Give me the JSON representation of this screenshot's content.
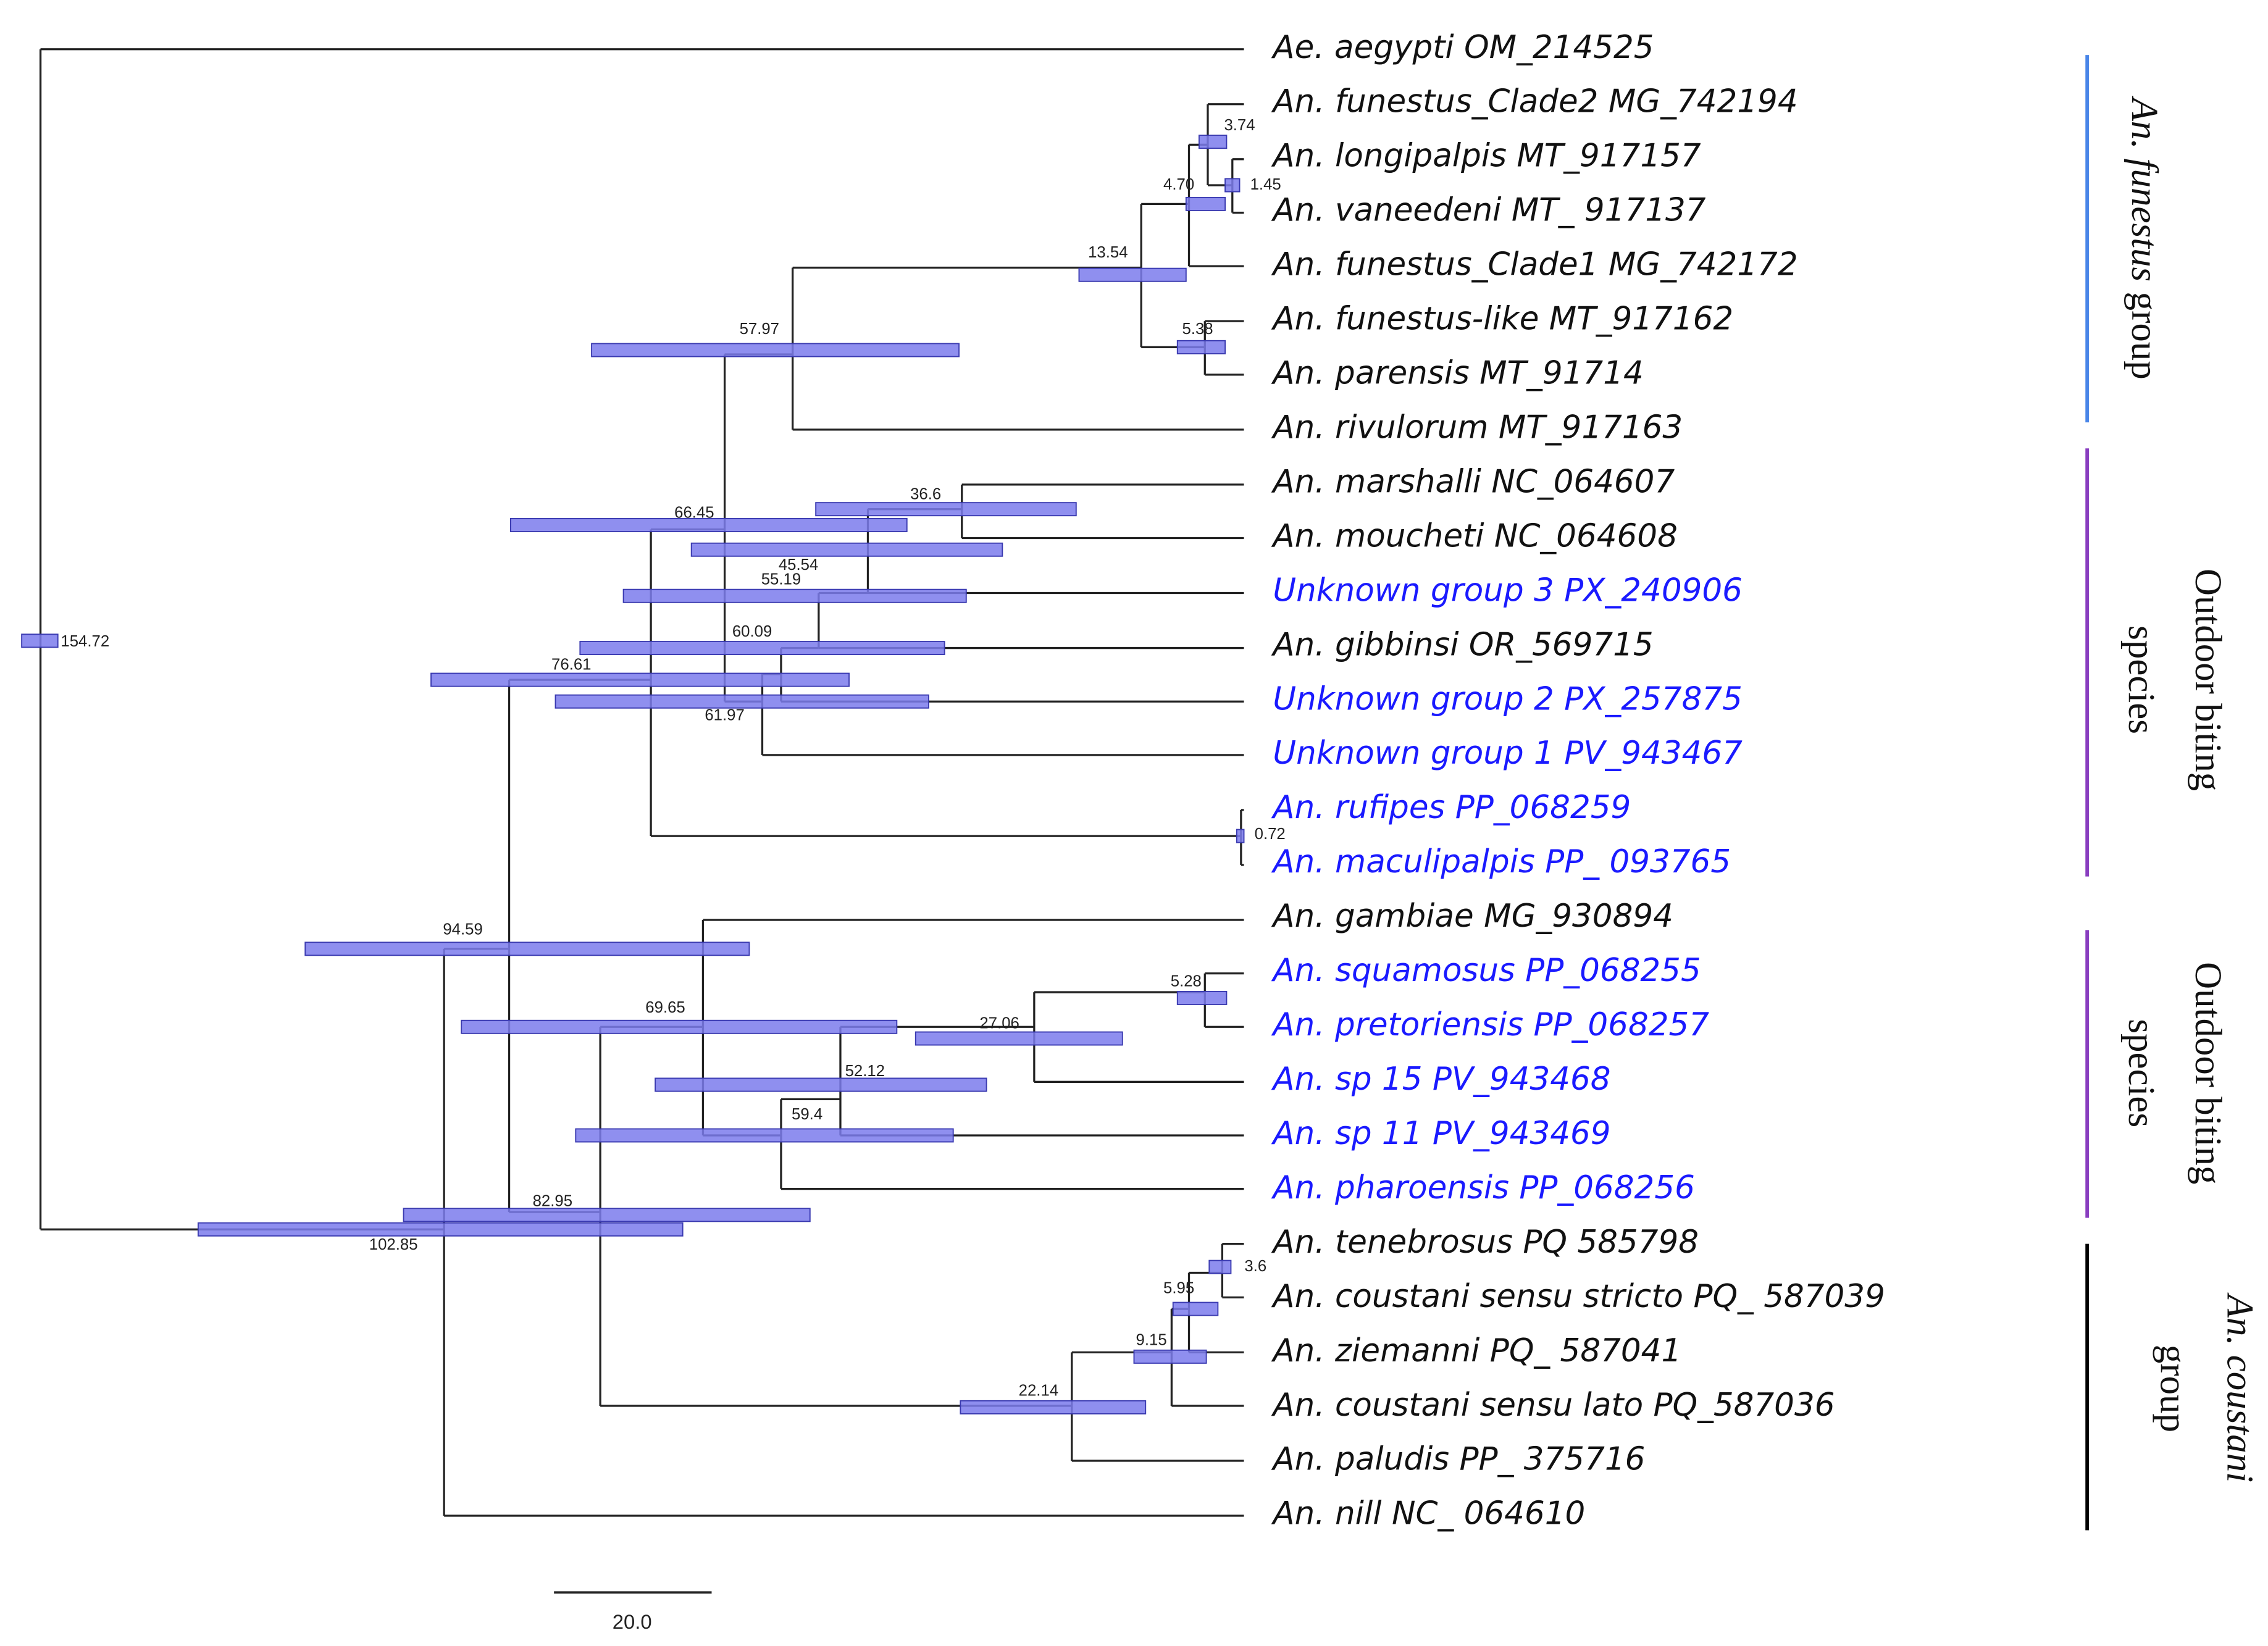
{
  "taxa": [
    {
      "label": "Ae. aegypti OM_214525",
      "color": "#111111"
    },
    {
      "label": "An. funestus_Clade2 MG_742194",
      "color": "#111111"
    },
    {
      "label": "An. longipalpis MT_917157",
      "color": "#111111"
    },
    {
      "label": "An. vaneedeni MT_ 917137",
      "color": "#111111"
    },
    {
      "label": "An. funestus_Clade1 MG_742172",
      "color": "#111111"
    },
    {
      "label": "An. funestus-like MT_917162",
      "color": "#111111"
    },
    {
      "label": "An. parensis MT_91714",
      "color": "#111111"
    },
    {
      "label": "An. rivulorum MT_917163",
      "color": "#111111"
    },
    {
      "label": "An. marshalli NC_064607",
      "color": "#111111"
    },
    {
      "label": "An. moucheti NC_064608",
      "color": "#111111"
    },
    {
      "label": "Unknown group 3 PX_240906",
      "color": "#1a1aff"
    },
    {
      "label": "An. gibbinsi OR_569715",
      "color": "#111111"
    },
    {
      "label": "Unknown group 2 PX_257875",
      "color": "#1a1aff"
    },
    {
      "label": "Unknown group 1 PV_943467",
      "color": "#1a1aff"
    },
    {
      "label": "An. rufipes PP_068259",
      "color": "#1a1aff"
    },
    {
      "label": "An. maculipalpis PP_ 093765",
      "color": "#1a1aff"
    },
    {
      "label": "An. gambiae MG_930894",
      "color": "#111111"
    },
    {
      "label": "An. squamosus PP_068255",
      "color": "#1a1aff"
    },
    {
      "label": "An. pretoriensis PP_068257",
      "color": "#1a1aff"
    },
    {
      "label": "An. sp 15 PV_943468",
      "color": "#1a1aff"
    },
    {
      "label": "An. sp 11 PV_943469",
      "color": "#1a1aff"
    },
    {
      "label": "An. pharoensis PP_068256",
      "color": "#1a1aff"
    },
    {
      "label": "An. tenebrosus PQ 585798",
      "color": "#111111"
    },
    {
      "label": "An. coustani sensu stricto PQ_ 587039",
      "color": "#111111"
    },
    {
      "label": "An. ziemanni PQ_ 587041",
      "color": "#111111"
    },
    {
      "label": "An. coustani sensu lato PQ_587036",
      "color": "#111111"
    },
    {
      "label": "An. paludis PP_ 375716",
      "color": "#111111"
    },
    {
      "label": "An. nill NC_ 064610",
      "color": "#111111"
    }
  ],
  "node_ages": [
    "154.72",
    "102.85",
    "82.95",
    "94.59",
    "76.61",
    "69.65",
    "66.45",
    "61.97",
    "60.09",
    "55.19",
    "45.54",
    "36.6",
    "57.97",
    "13.54",
    "4.70",
    "3.74",
    "1.45",
    "5.38",
    "0.72",
    "27.06",
    "5.28",
    "52.12",
    "59.4",
    "22.14",
    "9.15",
    "5.95",
    "3.6"
  ],
  "groups": [
    {
      "color": "#4a86e8",
      "lines": [
        {
          "italic": "An. funestus",
          "roman": "group"
        }
      ]
    },
    {
      "color": "#8a3fc0",
      "lines": [
        {
          "roman": "Outdoor biting"
        },
        {
          "roman": "species"
        }
      ]
    },
    {
      "color": "#8a3fc0",
      "lines": [
        {
          "roman": "Outdoor biting"
        },
        {
          "roman": "species"
        }
      ]
    },
    {
      "color": "#000000",
      "lines": [
        {
          "italic": "An. coustani"
        },
        {
          "roman": "group"
        }
      ]
    }
  ],
  "scale_bar": "20.0"
}
